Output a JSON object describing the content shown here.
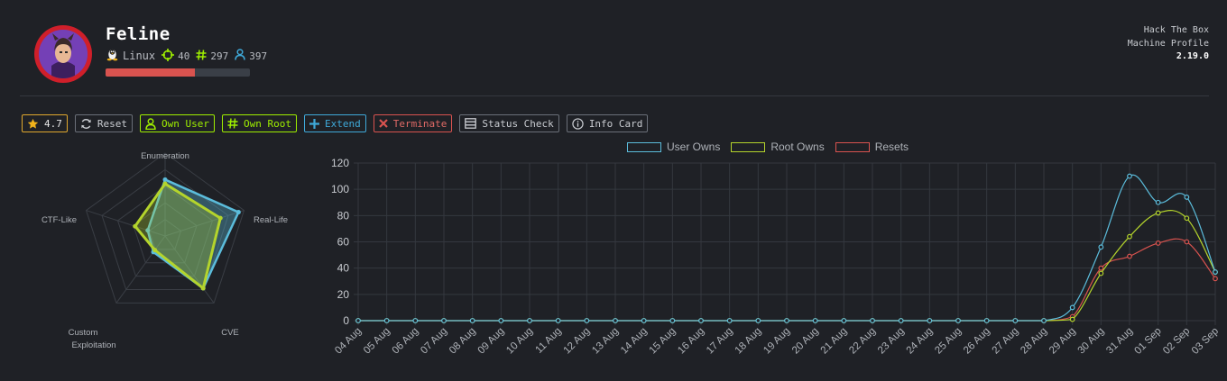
{
  "machine": {
    "name": "Feline",
    "os": "Linux",
    "points": "40",
    "root_owns_count": "297",
    "user_owns_count": "397",
    "progress": 0.62,
    "progress_color": "#d9534f"
  },
  "brand": {
    "line1": "Hack The Box",
    "line2": "Machine Profile",
    "version": "2.19.0"
  },
  "toolbar": {
    "rating": "4.7",
    "reset": "Reset",
    "own_user": "Own User",
    "own_root": "Own Root",
    "extend": "Extend",
    "terminate": "Terminate",
    "status_check": "Status Check",
    "info_card": "Info Card"
  },
  "colors": {
    "user": "#5bbcdb",
    "root": "#b4d42c",
    "reset": "#d9534f",
    "accent_green": "#9fef00"
  },
  "radar": {
    "axes": [
      "Enumeration",
      "Real-Life",
      "CVE",
      "Custom Exploitation",
      "CTF-Like"
    ],
    "max": 10,
    "series": [
      {
        "color": "#5bbcdb",
        "values": [
          6.8,
          9.3,
          7.8,
          2.4,
          2.2
        ]
      },
      {
        "color": "#b4d42c",
        "values": [
          6.3,
          7.0,
          7.8,
          2.1,
          3.8
        ]
      }
    ]
  },
  "chart_data": {
    "type": "line",
    "x": [
      "04 Aug",
      "05 Aug",
      "06 Aug",
      "07 Aug",
      "08 Aug",
      "09 Aug",
      "10 Aug",
      "11 Aug",
      "12 Aug",
      "13 Aug",
      "14 Aug",
      "15 Aug",
      "16 Aug",
      "17 Aug",
      "18 Aug",
      "19 Aug",
      "20 Aug",
      "21 Aug",
      "22 Aug",
      "23 Aug",
      "24 Aug",
      "25 Aug",
      "26 Aug",
      "27 Aug",
      "28 Aug",
      "29 Aug",
      "30 Aug",
      "31 Aug",
      "01 Sep",
      "02 Sep",
      "03 Sep"
    ],
    "ylim": [
      0,
      120
    ],
    "yticks": [
      0,
      20,
      40,
      60,
      80,
      100,
      120
    ],
    "grid": true,
    "legend_position": "top-center",
    "series": [
      {
        "name": "User Owns",
        "color": "#5bbcdb",
        "values": [
          0,
          0,
          0,
          0,
          0,
          0,
          0,
          0,
          0,
          0,
          0,
          0,
          0,
          0,
          0,
          0,
          0,
          0,
          0,
          0,
          0,
          0,
          0,
          0,
          0,
          10,
          56,
          110,
          90,
          94,
          37
        ]
      },
      {
        "name": "Root Owns",
        "color": "#b4d42c",
        "values": [
          0,
          0,
          0,
          0,
          0,
          0,
          0,
          0,
          0,
          0,
          0,
          0,
          0,
          0,
          0,
          0,
          0,
          0,
          0,
          0,
          0,
          0,
          0,
          0,
          0,
          1,
          36,
          64,
          82,
          78,
          37
        ]
      },
      {
        "name": "Resets",
        "color": "#d9534f",
        "values": [
          0,
          0,
          0,
          0,
          0,
          0,
          0,
          0,
          0,
          0,
          0,
          0,
          0,
          0,
          0,
          0,
          0,
          0,
          0,
          0,
          0,
          0,
          0,
          0,
          0,
          3,
          40,
          49,
          59,
          60,
          32
        ]
      }
    ]
  }
}
